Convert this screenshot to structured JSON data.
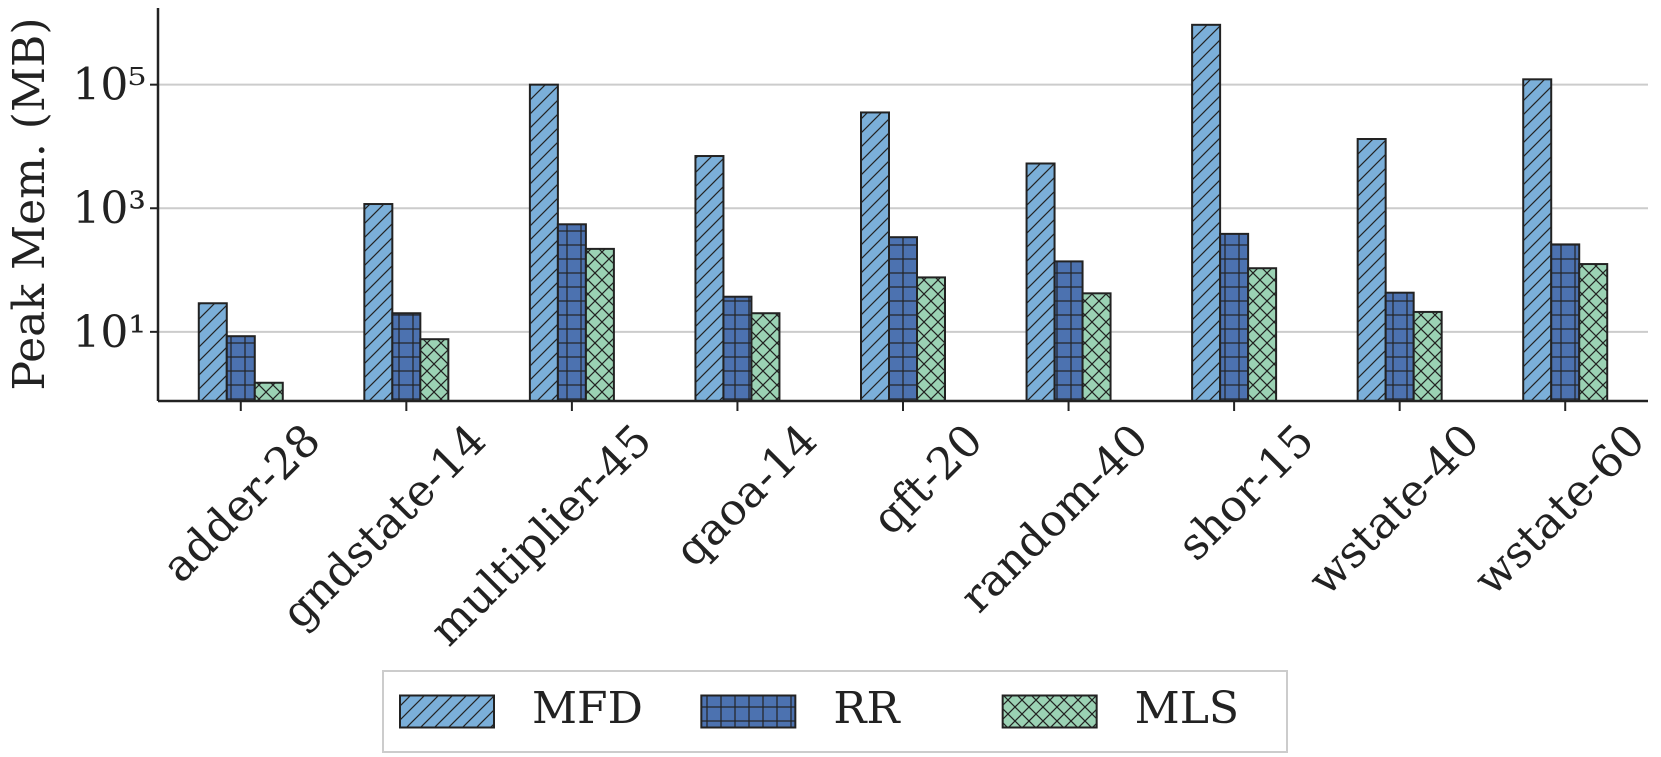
{
  "chart_data": {
    "type": "bar",
    "ylabel": "Peak Mem. (MB)",
    "yscale": "log",
    "categories": [
      "adder-28",
      "gndstate-14",
      "multiplier-45",
      "qaoa-14",
      "qft-20",
      "random-40",
      "shor-15",
      "wstate-40",
      "wstate-60"
    ],
    "series": [
      {
        "name": "MFD",
        "color": "#7bafd9",
        "hatch": "/",
        "values": [
          29,
          1170,
          100000,
          7000,
          35500,
          5300,
          930000,
          13200,
          122000
        ]
      },
      {
        "name": "RR",
        "color": "#4c72b0",
        "hatch": "+",
        "values": [
          8.5,
          20,
          550,
          37,
          340,
          138,
          385,
          43,
          260
        ]
      },
      {
        "name": "MLS",
        "color": "#9bd2b4",
        "hatch": "x",
        "values": [
          1.5,
          7.6,
          220,
          20,
          76,
          42,
          107,
          21,
          125
        ]
      }
    ],
    "ylim": [
      0.76,
      1740000
    ],
    "yticks": [
      {
        "value": 10,
        "label": "10¹"
      },
      {
        "value": 1000,
        "label": "10³"
      },
      {
        "value": 100000,
        "label": "10⁵"
      }
    ],
    "grid": true,
    "legend": "lower center"
  }
}
